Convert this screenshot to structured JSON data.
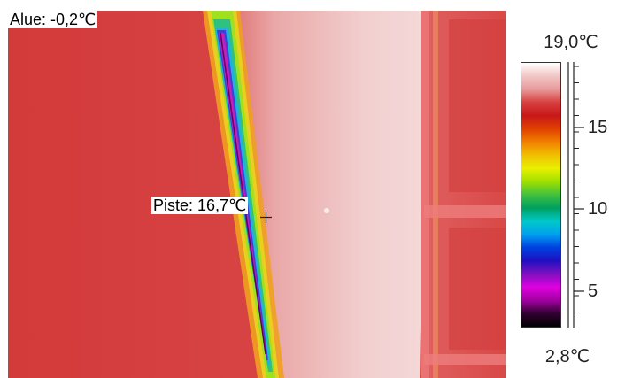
{
  "labels": {
    "area": "Alue: -0,2℃",
    "spot": "Piste: 16,7℃"
  },
  "scale": {
    "max": "19,0℃",
    "min": "2,8℃",
    "ticks": [
      "15",
      "10",
      "5"
    ],
    "palette": [
      "#ffffff",
      "#f2c6c6",
      "#e89a9a",
      "#d84040",
      "#c81818",
      "#e04000",
      "#f08000",
      "#f0c000",
      "#e8f000",
      "#a0e000",
      "#40c040",
      "#00a060",
      "#00c8c8",
      "#00a0f0",
      "#0040e0",
      "#2010c0",
      "#8010c0",
      "#e000e0",
      "#a000a0",
      "#300030",
      "#000000"
    ]
  },
  "colors": {
    "wall": "#d63c3c",
    "panel": "#f1d0d0",
    "panel_edge": "#e88a8a",
    "right_frame": "#d64545"
  }
}
